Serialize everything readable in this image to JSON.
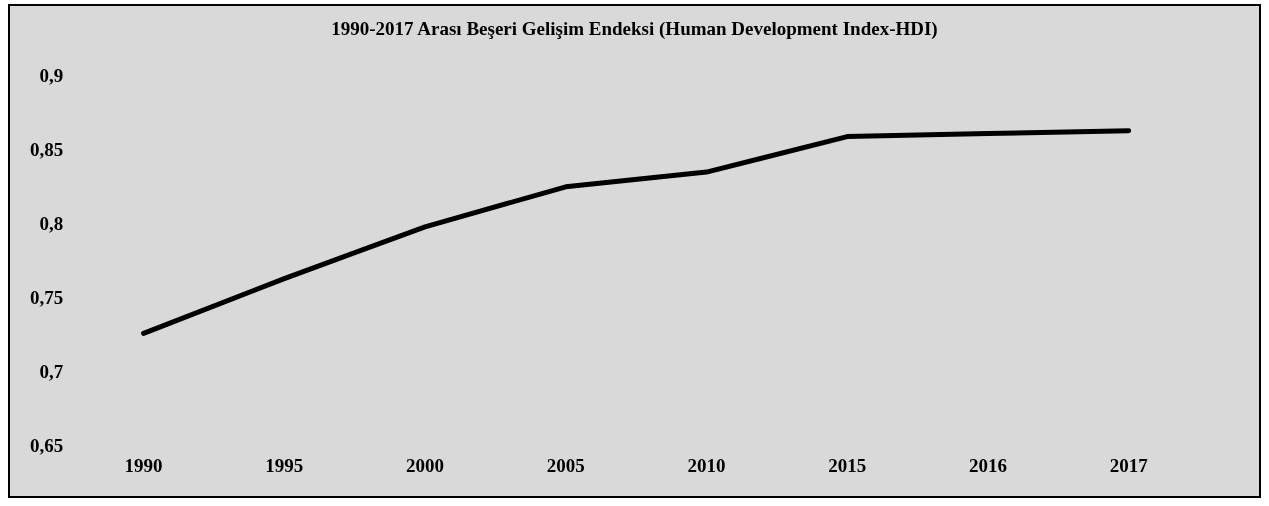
{
  "chart_data": {
    "type": "line",
    "title": "1990-2017 Arası Beşeri Gelişim Endeksi (Human Development Index-HDI)",
    "categories": [
      "1990",
      "1995",
      "2000",
      "2005",
      "2010",
      "2015",
      "2016",
      "2017"
    ],
    "series": [
      {
        "color": "#000000",
        "values": [
          0.727,
          0.764,
          0.799,
          0.826,
          0.836,
          0.86,
          0.862,
          0.864
        ]
      }
    ],
    "ylim": [
      0.65,
      0.9
    ],
    "yticks": [
      {
        "value": 0.65,
        "label": "0,65"
      },
      {
        "value": 0.7,
        "label": "0,7"
      },
      {
        "value": 0.75,
        "label": "0,75"
      },
      {
        "value": 0.8,
        "label": "0,8"
      },
      {
        "value": 0.85,
        "label": "0,85"
      },
      {
        "value": 0.9,
        "label": "0,9"
      }
    ],
    "grid": false,
    "legend": false,
    "marker": "none",
    "line_style": "solid"
  }
}
